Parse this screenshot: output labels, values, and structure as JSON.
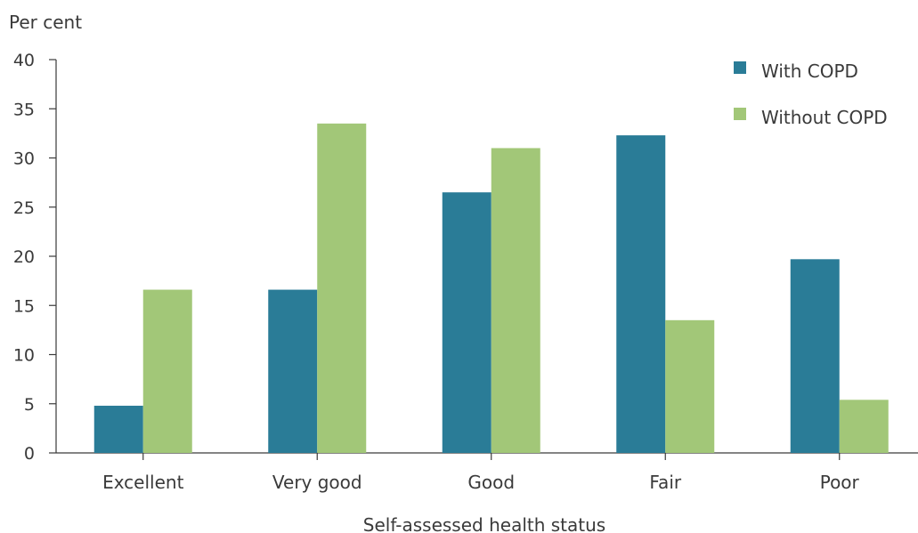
{
  "chart_data": {
    "type": "bar",
    "ylabel": "Per cent",
    "xlabel": "Self-assessed health status",
    "categories": [
      "Excellent",
      "Very good",
      "Good",
      "Fair",
      "Poor"
    ],
    "series": [
      {
        "name": "With COPD",
        "color": "#2a7c97",
        "values": [
          4.8,
          16.6,
          26.5,
          32.3,
          19.7
        ]
      },
      {
        "name": "Without COPD",
        "color": "#a2c778",
        "values": [
          16.6,
          33.5,
          31.0,
          13.5,
          5.4
        ]
      }
    ],
    "ylim": [
      0,
      40
    ],
    "yticks": [
      0,
      5,
      10,
      15,
      20,
      25,
      30,
      35,
      40
    ],
    "grid": false,
    "legend": "top-right"
  }
}
